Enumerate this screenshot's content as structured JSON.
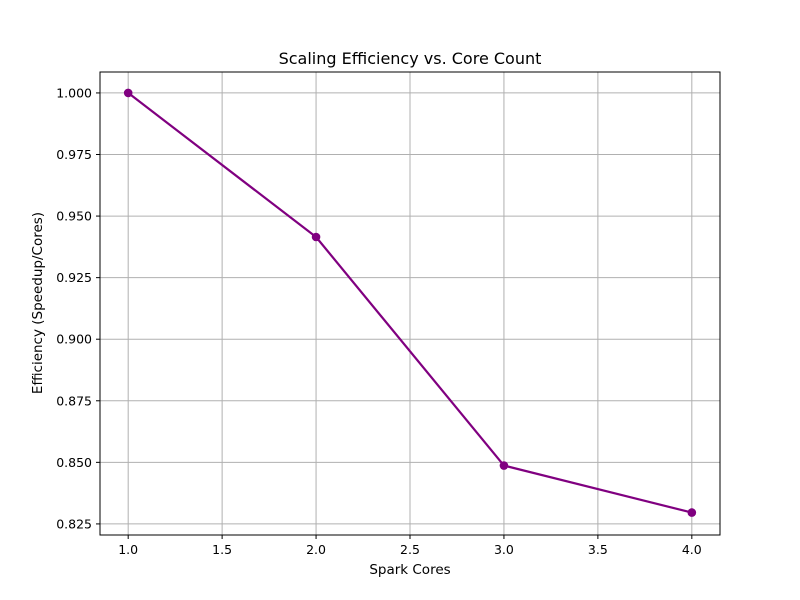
{
  "chart_data": {
    "type": "line",
    "title": "Scaling Efficiency vs. Core Count",
    "xlabel": "Spark Cores",
    "ylabel": "Efficiency (Speedup/Cores)",
    "x": [
      1,
      2,
      3,
      4
    ],
    "series": [
      {
        "values": [
          1.0,
          0.9415,
          0.8487,
          0.8296
        ],
        "color": "#800080",
        "marker": "circle"
      }
    ],
    "xlim": [
      0.85,
      4.15
    ],
    "ylim": [
      0.8205,
      1.0085
    ],
    "xticks": [
      1.0,
      1.5,
      2.0,
      2.5,
      3.0,
      3.5,
      4.0
    ],
    "xtick_labels": [
      "1.0",
      "1.5",
      "2.0",
      "2.5",
      "3.0",
      "3.5",
      "4.0"
    ],
    "yticks": [
      0.825,
      0.85,
      0.875,
      0.9,
      0.925,
      0.95,
      0.975,
      1.0
    ],
    "ytick_labels": [
      "0.825",
      "0.850",
      "0.875",
      "0.900",
      "0.925",
      "0.950",
      "0.975",
      "1.000"
    ],
    "grid": true,
    "grid_color": "#b0b0b0"
  }
}
